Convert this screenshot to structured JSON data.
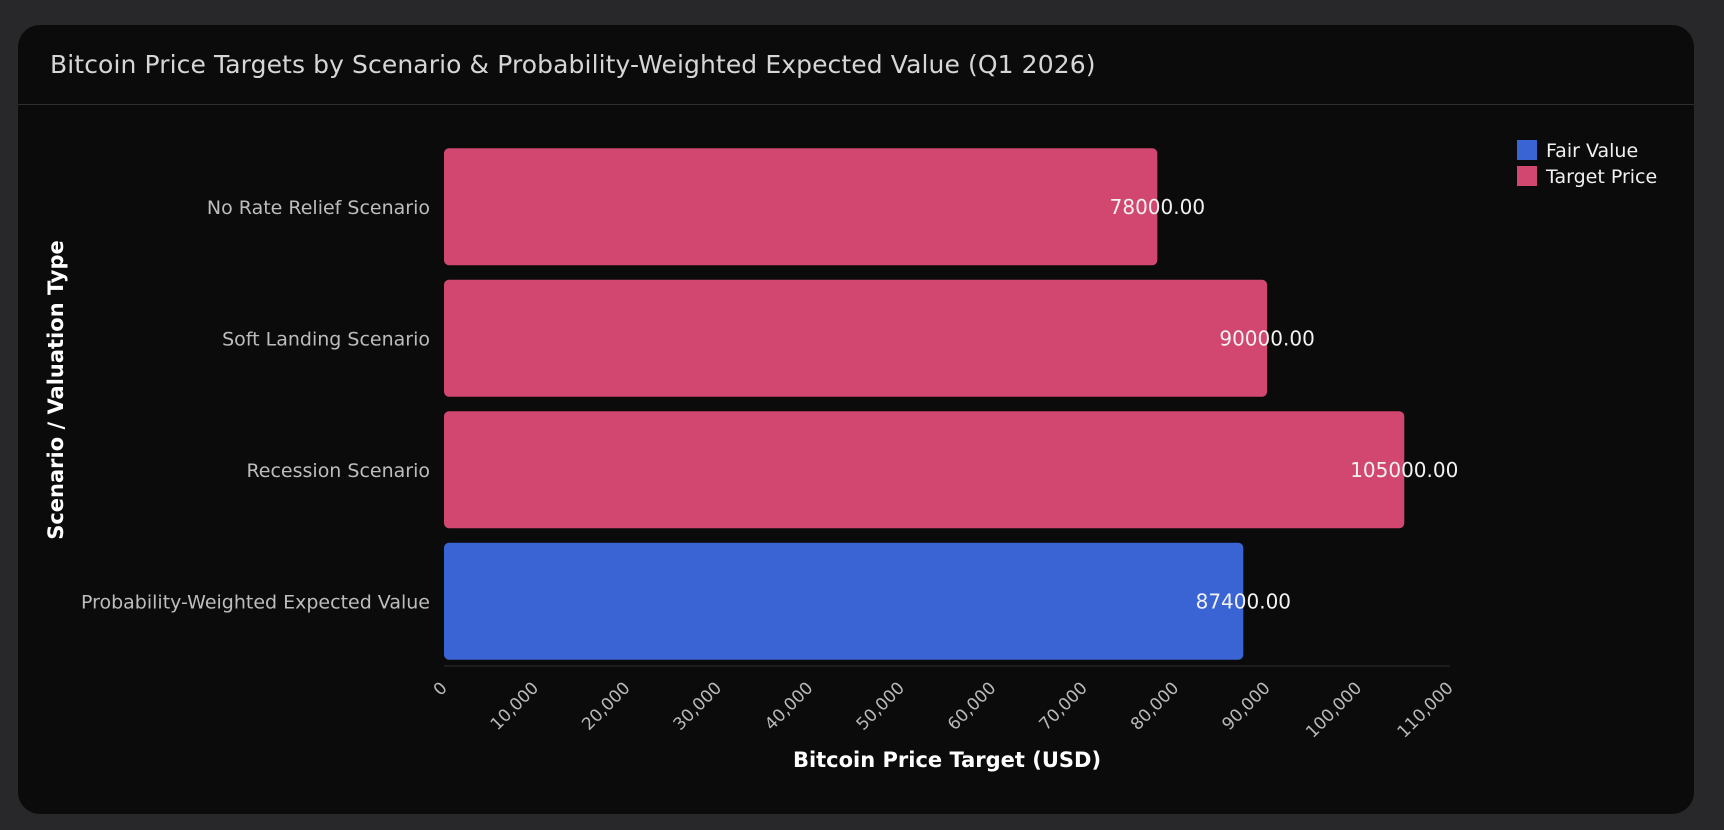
{
  "card": {
    "title": "Bitcoin Price Targets by Scenario & Probability-Weighted Expected Value (Q1 2026)"
  },
  "chart_data": {
    "type": "bar",
    "orientation": "horizontal",
    "title": "Bitcoin Price Targets by Scenario & Probability-Weighted Expected Value (Q1 2026)",
    "xlabel": "Bitcoin Price Target (USD)",
    "ylabel": "Scenario / Valuation Type",
    "xlim": [
      0,
      110000
    ],
    "xticks": [
      0,
      10000,
      20000,
      30000,
      40000,
      50000,
      60000,
      70000,
      80000,
      90000,
      100000,
      110000
    ],
    "xtick_labels": [
      "0",
      "10,000",
      "20,000",
      "30,000",
      "40,000",
      "50,000",
      "60,000",
      "70,000",
      "80,000",
      "90,000",
      "100,000",
      "110,000"
    ],
    "grid": false,
    "legend_position": "top-right",
    "legend": [
      {
        "name": "Fair Value",
        "color": "#3a63d4"
      },
      {
        "name": "Target Price",
        "color": "#d2476f"
      }
    ],
    "categories": [
      "No Rate Relief Scenario",
      "Soft Landing Scenario",
      "Recession Scenario",
      "Probability-Weighted Expected Value"
    ],
    "values": [
      78000,
      90000,
      105000,
      87400
    ],
    "value_labels": [
      "78000.00",
      "90000.00",
      "105000.00",
      "87400.00"
    ],
    "bar_series": [
      "Target Price",
      "Target Price",
      "Target Price",
      "Fair Value"
    ]
  }
}
